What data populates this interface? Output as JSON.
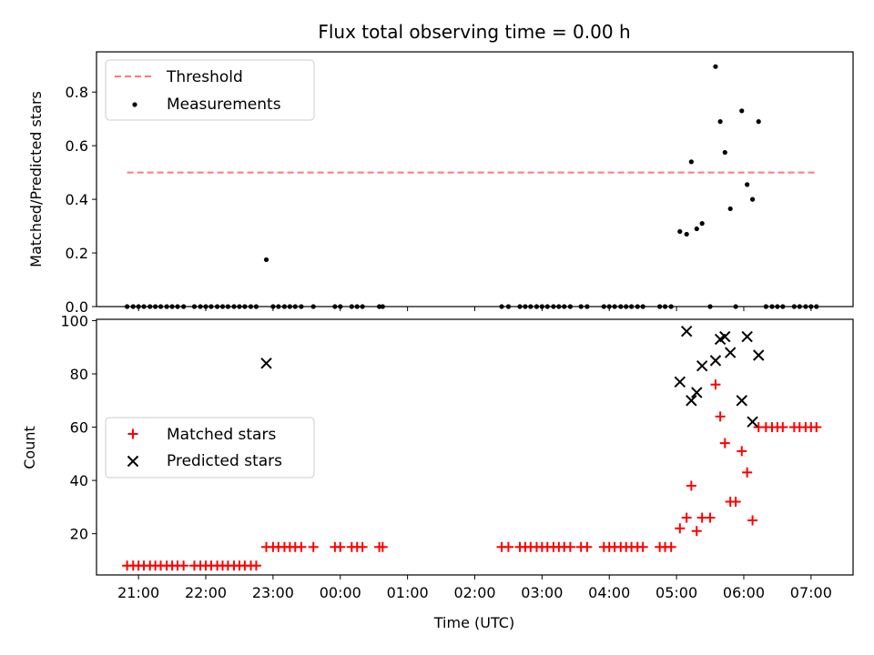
{
  "chart_data": [
    {
      "type": "scatter",
      "title": "Flux total observing time = 0.00 h",
      "xlabel": "",
      "ylabel": "Matched/Predicted stars",
      "xlim_hours": [
        20.375,
        31.625
      ],
      "ylim": [
        0,
        0.95
      ],
      "yticks": [
        0.0,
        0.2,
        0.4,
        0.6,
        0.8
      ],
      "yticklabels": [
        "0.0",
        "0.2",
        "0.4",
        "0.6",
        "0.8"
      ],
      "legend_position": "top-left",
      "threshold": {
        "name": "Threshold",
        "y": 0.5,
        "x_range": [
          20.83,
          31.08
        ],
        "color": "#ff7777"
      },
      "measurements": {
        "name": "Measurements",
        "color": "#000000",
        "points": [
          [
            20.83,
            0
          ],
          [
            20.92,
            0
          ],
          [
            21.0,
            0
          ],
          [
            21.08,
            0
          ],
          [
            21.17,
            0
          ],
          [
            21.25,
            0
          ],
          [
            21.33,
            0
          ],
          [
            21.42,
            0
          ],
          [
            21.5,
            0
          ],
          [
            21.58,
            0
          ],
          [
            21.67,
            0
          ],
          [
            21.83,
            0
          ],
          [
            21.92,
            0
          ],
          [
            22.0,
            0
          ],
          [
            22.08,
            0
          ],
          [
            22.17,
            0
          ],
          [
            22.25,
            0
          ],
          [
            22.33,
            0
          ],
          [
            22.42,
            0
          ],
          [
            22.5,
            0
          ],
          [
            22.58,
            0
          ],
          [
            22.67,
            0
          ],
          [
            22.75,
            0
          ],
          [
            22.9,
            0.175
          ],
          [
            23.0,
            0
          ],
          [
            23.08,
            0
          ],
          [
            23.17,
            0
          ],
          [
            23.25,
            0
          ],
          [
            23.33,
            0
          ],
          [
            23.42,
            0
          ],
          [
            23.6,
            0
          ],
          [
            23.92,
            0
          ],
          [
            24.0,
            0
          ],
          [
            24.17,
            0
          ],
          [
            24.25,
            0
          ],
          [
            24.33,
            0
          ],
          [
            24.58,
            0
          ],
          [
            24.63,
            0
          ],
          [
            26.4,
            0
          ],
          [
            26.5,
            0
          ],
          [
            26.67,
            0
          ],
          [
            26.75,
            0
          ],
          [
            26.83,
            0
          ],
          [
            26.92,
            0
          ],
          [
            27.0,
            0
          ],
          [
            27.08,
            0
          ],
          [
            27.17,
            0
          ],
          [
            27.25,
            0
          ],
          [
            27.33,
            0
          ],
          [
            27.42,
            0
          ],
          [
            27.58,
            0
          ],
          [
            27.67,
            0
          ],
          [
            27.92,
            0
          ],
          [
            28.0,
            0
          ],
          [
            28.08,
            0
          ],
          [
            28.17,
            0
          ],
          [
            28.25,
            0
          ],
          [
            28.33,
            0
          ],
          [
            28.42,
            0
          ],
          [
            28.5,
            0
          ],
          [
            28.75,
            0
          ],
          [
            28.83,
            0
          ],
          [
            28.92,
            0
          ],
          [
            29.05,
            0.28
          ],
          [
            29.15,
            0.27
          ],
          [
            29.22,
            0.54
          ],
          [
            29.3,
            0.29
          ],
          [
            29.38,
            0.31
          ],
          [
            29.5,
            0
          ],
          [
            29.58,
            0.895
          ],
          [
            29.65,
            0.69
          ],
          [
            29.72,
            0.575
          ],
          [
            29.8,
            0.365
          ],
          [
            29.88,
            0
          ],
          [
            29.97,
            0.73
          ],
          [
            30.05,
            0.455
          ],
          [
            30.13,
            0.4
          ],
          [
            30.22,
            0.69
          ],
          [
            30.33,
            0
          ],
          [
            30.42,
            0
          ],
          [
            30.5,
            0
          ],
          [
            30.58,
            0
          ],
          [
            30.75,
            0
          ],
          [
            30.83,
            0
          ],
          [
            30.92,
            0
          ],
          [
            31.0,
            0
          ],
          [
            31.08,
            0
          ]
        ]
      }
    },
    {
      "type": "scatter",
      "title": "",
      "xlabel": "Time (UTC)",
      "ylabel": "Count",
      "xlim_hours": [
        20.375,
        31.625
      ],
      "ylim": [
        4.5,
        100.5
      ],
      "xticks_hours": [
        21,
        22,
        23,
        24,
        25,
        26,
        27,
        28,
        29,
        30,
        31
      ],
      "xticklabels": [
        "21:00",
        "22:00",
        "23:00",
        "00:00",
        "01:00",
        "02:00",
        "03:00",
        "04:00",
        "05:00",
        "06:00",
        "07:00"
      ],
      "yticks": [
        20,
        40,
        60,
        80,
        100
      ],
      "yticklabels": [
        "20",
        "40",
        "60",
        "80",
        "100"
      ],
      "legend_position": "center-left",
      "series": [
        {
          "name": "Matched stars",
          "marker": "plus",
          "color": "#ff0000",
          "points": [
            [
              20.83,
              8
            ],
            [
              20.92,
              8
            ],
            [
              21.0,
              8
            ],
            [
              21.08,
              8
            ],
            [
              21.17,
              8
            ],
            [
              21.25,
              8
            ],
            [
              21.33,
              8
            ],
            [
              21.42,
              8
            ],
            [
              21.5,
              8
            ],
            [
              21.58,
              8
            ],
            [
              21.67,
              8
            ],
            [
              21.83,
              8
            ],
            [
              21.92,
              8
            ],
            [
              22.0,
              8
            ],
            [
              22.08,
              8
            ],
            [
              22.17,
              8
            ],
            [
              22.25,
              8
            ],
            [
              22.33,
              8
            ],
            [
              22.42,
              8
            ],
            [
              22.5,
              8
            ],
            [
              22.58,
              8
            ],
            [
              22.67,
              8
            ],
            [
              22.75,
              8
            ],
            [
              22.9,
              15
            ],
            [
              23.0,
              15
            ],
            [
              23.08,
              15
            ],
            [
              23.17,
              15
            ],
            [
              23.25,
              15
            ],
            [
              23.33,
              15
            ],
            [
              23.42,
              15
            ],
            [
              23.6,
              15
            ],
            [
              23.92,
              15
            ],
            [
              24.0,
              15
            ],
            [
              24.17,
              15
            ],
            [
              24.25,
              15
            ],
            [
              24.33,
              15
            ],
            [
              24.58,
              15
            ],
            [
              24.63,
              15
            ],
            [
              26.4,
              15
            ],
            [
              26.5,
              15
            ],
            [
              26.67,
              15
            ],
            [
              26.75,
              15
            ],
            [
              26.83,
              15
            ],
            [
              26.92,
              15
            ],
            [
              27.0,
              15
            ],
            [
              27.08,
              15
            ],
            [
              27.17,
              15
            ],
            [
              27.25,
              15
            ],
            [
              27.33,
              15
            ],
            [
              27.42,
              15
            ],
            [
              27.58,
              15
            ],
            [
              27.67,
              15
            ],
            [
              27.92,
              15
            ],
            [
              28.0,
              15
            ],
            [
              28.08,
              15
            ],
            [
              28.17,
              15
            ],
            [
              28.25,
              15
            ],
            [
              28.33,
              15
            ],
            [
              28.42,
              15
            ],
            [
              28.5,
              15
            ],
            [
              28.75,
              15
            ],
            [
              28.83,
              15
            ],
            [
              28.92,
              15
            ],
            [
              29.05,
              22
            ],
            [
              29.15,
              26
            ],
            [
              29.22,
              38
            ],
            [
              29.3,
              21
            ],
            [
              29.38,
              26
            ],
            [
              29.5,
              26
            ],
            [
              29.58,
              76
            ],
            [
              29.65,
              64
            ],
            [
              29.72,
              54
            ],
            [
              29.8,
              32
            ],
            [
              29.88,
              32
            ],
            [
              29.97,
              51
            ],
            [
              30.05,
              43
            ],
            [
              30.13,
              25
            ],
            [
              30.22,
              60
            ],
            [
              30.33,
              60
            ],
            [
              30.42,
              60
            ],
            [
              30.5,
              60
            ],
            [
              30.58,
              60
            ],
            [
              30.75,
              60
            ],
            [
              30.83,
              60
            ],
            [
              30.92,
              60
            ],
            [
              31.0,
              60
            ],
            [
              31.08,
              60
            ]
          ]
        },
        {
          "name": "Predicted stars",
          "marker": "x",
          "color": "#000000",
          "points": [
            [
              22.9,
              84
            ],
            [
              29.05,
              77
            ],
            [
              29.15,
              96
            ],
            [
              29.22,
              70
            ],
            [
              29.3,
              73
            ],
            [
              29.38,
              83
            ],
            [
              29.58,
              85
            ],
            [
              29.65,
              93
            ],
            [
              29.72,
              94
            ],
            [
              29.8,
              88
            ],
            [
              29.97,
              70
            ],
            [
              30.05,
              94
            ],
            [
              30.13,
              62
            ],
            [
              30.22,
              87
            ]
          ]
        }
      ]
    }
  ]
}
